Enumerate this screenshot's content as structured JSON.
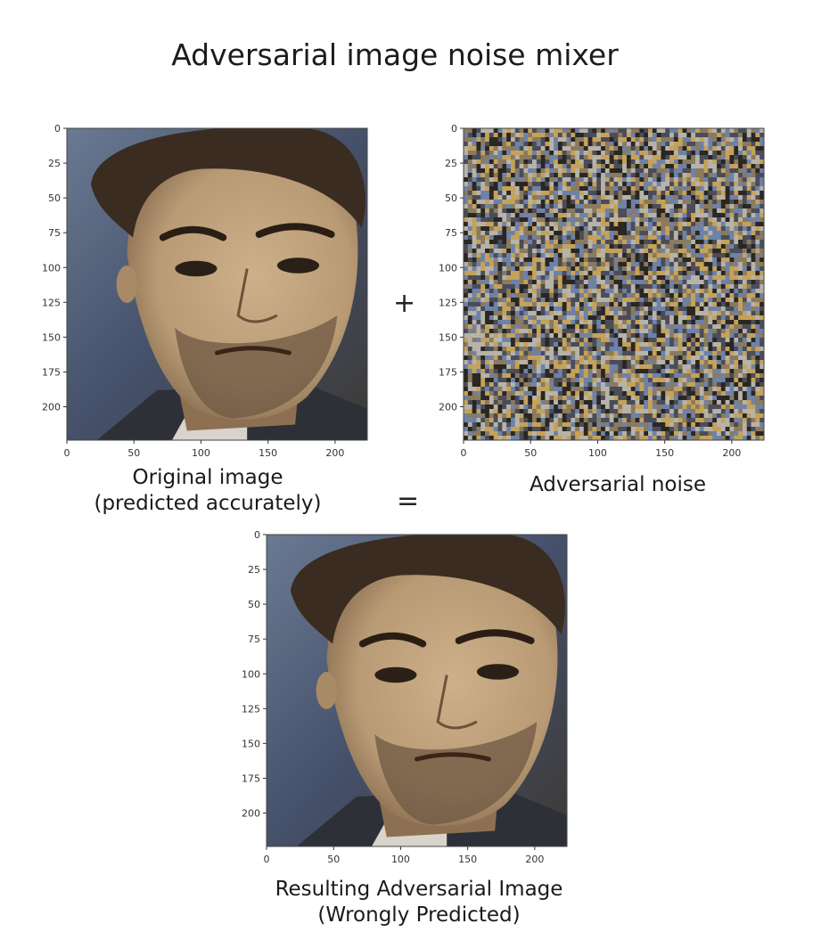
{
  "title": "Adversarial image noise mixer",
  "operators": {
    "plus": "+",
    "equals": "="
  },
  "panels": {
    "original": {
      "caption_line1": "Original image",
      "caption_line2": "(predicted accurately)",
      "content": "face-photo"
    },
    "noise": {
      "caption_line1": "Adversarial noise",
      "content": "noise"
    },
    "result": {
      "caption_line1": "Resulting Adversarial Image",
      "caption_line2": "(Wrongly Predicted)",
      "content": "face-photo"
    }
  },
  "axes": {
    "y_ticks": [
      "0",
      "25",
      "50",
      "75",
      "100",
      "125",
      "150",
      "175",
      "200"
    ],
    "x_ticks": [
      "0",
      "50",
      "100",
      "150",
      "200"
    ]
  },
  "colors": {
    "skin": "#b89a74",
    "hair": "#3a2c20",
    "background": "#45506a",
    "noise_gold": "#c4a25a",
    "noise_blue": "#6e82a8",
    "noise_dark": "#2a2622"
  }
}
